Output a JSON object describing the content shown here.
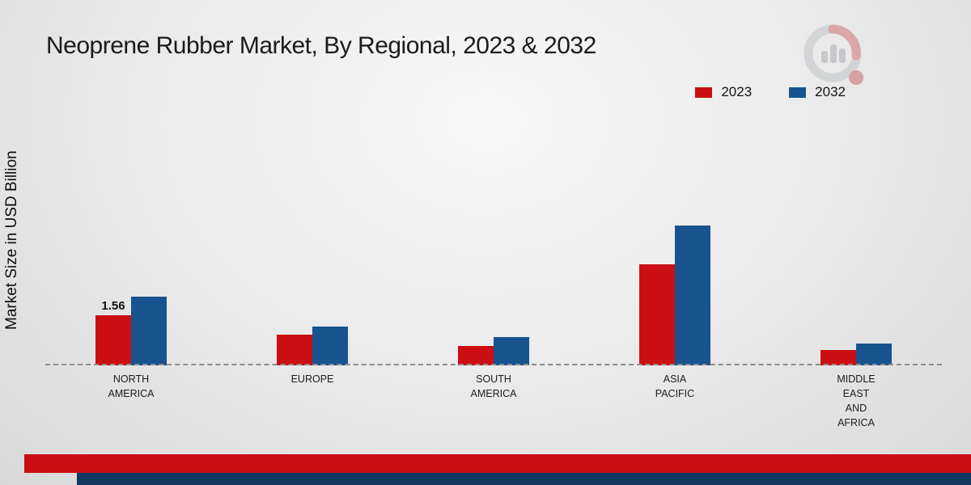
{
  "title": "Neoprene Rubber Market, By Regional, 2023 & 2032",
  "colors": {
    "series_2023": "#cb0e13",
    "series_2032": "#17538e",
    "footer_red": "#c90d12",
    "footer_navy": "#123a63",
    "baseline": "#8d8d8d"
  },
  "legend": [
    {
      "label": "2023",
      "color": "#cb0e13"
    },
    {
      "label": "2032",
      "color": "#17538e"
    }
  ],
  "chart_data": {
    "type": "bar",
    "title": "Neoprene Rubber Market, By Regional, 2023 & 2032",
    "ylabel": "Market Size in USD Billion",
    "categories": [
      "NORTH AMERICA",
      "EUROPE",
      "SOUTH AMERICA",
      "ASIA PACIFIC",
      "MIDDLE EAST AND AFRICA"
    ],
    "category_label_lines": [
      [
        "NORTH",
        "AMERICA"
      ],
      [
        "EUROPE"
      ],
      [
        "SOUTH",
        "AMERICA"
      ],
      [
        "ASIA",
        "PACIFIC"
      ],
      [
        "MIDDLE",
        "EAST",
        "AND",
        "AFRICA"
      ]
    ],
    "series": [
      {
        "name": "2023",
        "color": "#cb0e13",
        "values": [
          1.56,
          0.95,
          0.6,
          3.12,
          0.48
        ]
      },
      {
        "name": "2032",
        "color": "#17538e",
        "values": [
          2.12,
          1.2,
          0.88,
          4.33,
          0.67
        ]
      }
    ],
    "annotations": [
      {
        "category_index": 0,
        "series": "2023",
        "text": "1.56"
      }
    ],
    "baseline": "dashed",
    "grid": false,
    "legend_position": "top-right"
  }
}
